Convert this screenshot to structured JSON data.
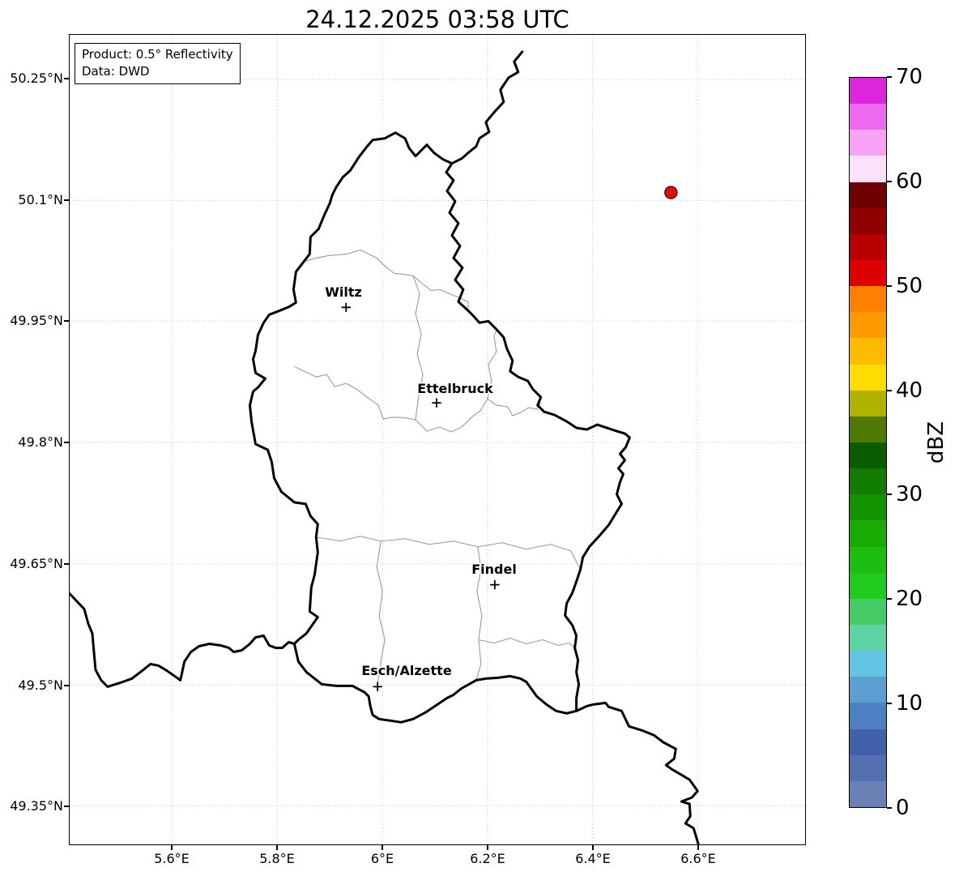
{
  "title": "24.12.2025 03:58 UTC",
  "info_box": {
    "product": "Product: 0.5° Reflectivity",
    "data_source": "Data: DWD"
  },
  "axes": {
    "x_tick_labels": [
      "5.6°E",
      "5.8°E",
      "6°E",
      "6.2°E",
      "6.4°E",
      "6.6°E"
    ],
    "y_tick_labels": [
      "50.25°N",
      "50.1°N",
      "49.95°N",
      "49.8°N",
      "49.65°N",
      "49.5°N",
      "49.35°N"
    ]
  },
  "cities": [
    {
      "name": "Wiltz"
    },
    {
      "name": "Ettelbruck"
    },
    {
      "name": "Findel"
    },
    {
      "name": "Esch/Alzette"
    }
  ],
  "radar_echo": {
    "approx_lon": "6.55°E",
    "approx_lat": "50.11°N",
    "fill_color": "#e01010",
    "edge_color": "#5a0000"
  },
  "colorbar": {
    "label": "dBZ",
    "min": 0,
    "max": 70,
    "ticks": [
      {
        "value": 0,
        "label": "0"
      },
      {
        "value": 10,
        "label": "10"
      },
      {
        "value": 20,
        "label": "20"
      },
      {
        "value": 30,
        "label": "30"
      },
      {
        "value": 40,
        "label": "40"
      },
      {
        "value": 50,
        "label": "50"
      },
      {
        "value": 60,
        "label": "60"
      },
      {
        "value": 70,
        "label": "70"
      }
    ],
    "bands": [
      {
        "from": 0,
        "to": 2.5,
        "color": "#6b80b5"
      },
      {
        "from": 2.5,
        "to": 5,
        "color": "#5470b0"
      },
      {
        "from": 5,
        "to": 7.5,
        "color": "#4161ac"
      },
      {
        "from": 7.5,
        "to": 10,
        "color": "#4c80c0"
      },
      {
        "from": 10,
        "to": 12.5,
        "color": "#5b9ed2"
      },
      {
        "from": 12.5,
        "to": 15,
        "color": "#65c3e3"
      },
      {
        "from": 15,
        "to": 17.5,
        "color": "#5ed3a6"
      },
      {
        "from": 17.5,
        "to": 20,
        "color": "#46cc66"
      },
      {
        "from": 20,
        "to": 22.5,
        "color": "#20cb20"
      },
      {
        "from": 22.5,
        "to": 25,
        "color": "#1dbe10"
      },
      {
        "from": 25,
        "to": 27.5,
        "color": "#18ab00"
      },
      {
        "from": 27.5,
        "to": 30,
        "color": "#149300"
      },
      {
        "from": 30,
        "to": 32.5,
        "color": "#117c00"
      },
      {
        "from": 32.5,
        "to": 35,
        "color": "#0b5c00"
      },
      {
        "from": 35,
        "to": 37.5,
        "color": "#4f7800"
      },
      {
        "from": 37.5,
        "to": 40,
        "color": "#b1b100"
      },
      {
        "from": 40,
        "to": 42.5,
        "color": "#ffdd00"
      },
      {
        "from": 42.5,
        "to": 45,
        "color": "#ffbb00"
      },
      {
        "from": 45,
        "to": 47.5,
        "color": "#ff9900"
      },
      {
        "from": 47.5,
        "to": 50,
        "color": "#ff7f00"
      },
      {
        "from": 50,
        "to": 52.5,
        "color": "#de0000"
      },
      {
        "from": 52.5,
        "to": 55,
        "color": "#b80000"
      },
      {
        "from": 55,
        "to": 57.5,
        "color": "#900000"
      },
      {
        "from": 57.5,
        "to": 60,
        "color": "#6e0000"
      },
      {
        "from": 60,
        "to": 62.5,
        "color": "#fce1fc"
      },
      {
        "from": 62.5,
        "to": 65,
        "color": "#f6a3f6"
      },
      {
        "from": 65,
        "to": 67.5,
        "color": "#ef69ef"
      },
      {
        "from": 67.5,
        "to": 70,
        "color": "#de25de"
      }
    ]
  }
}
